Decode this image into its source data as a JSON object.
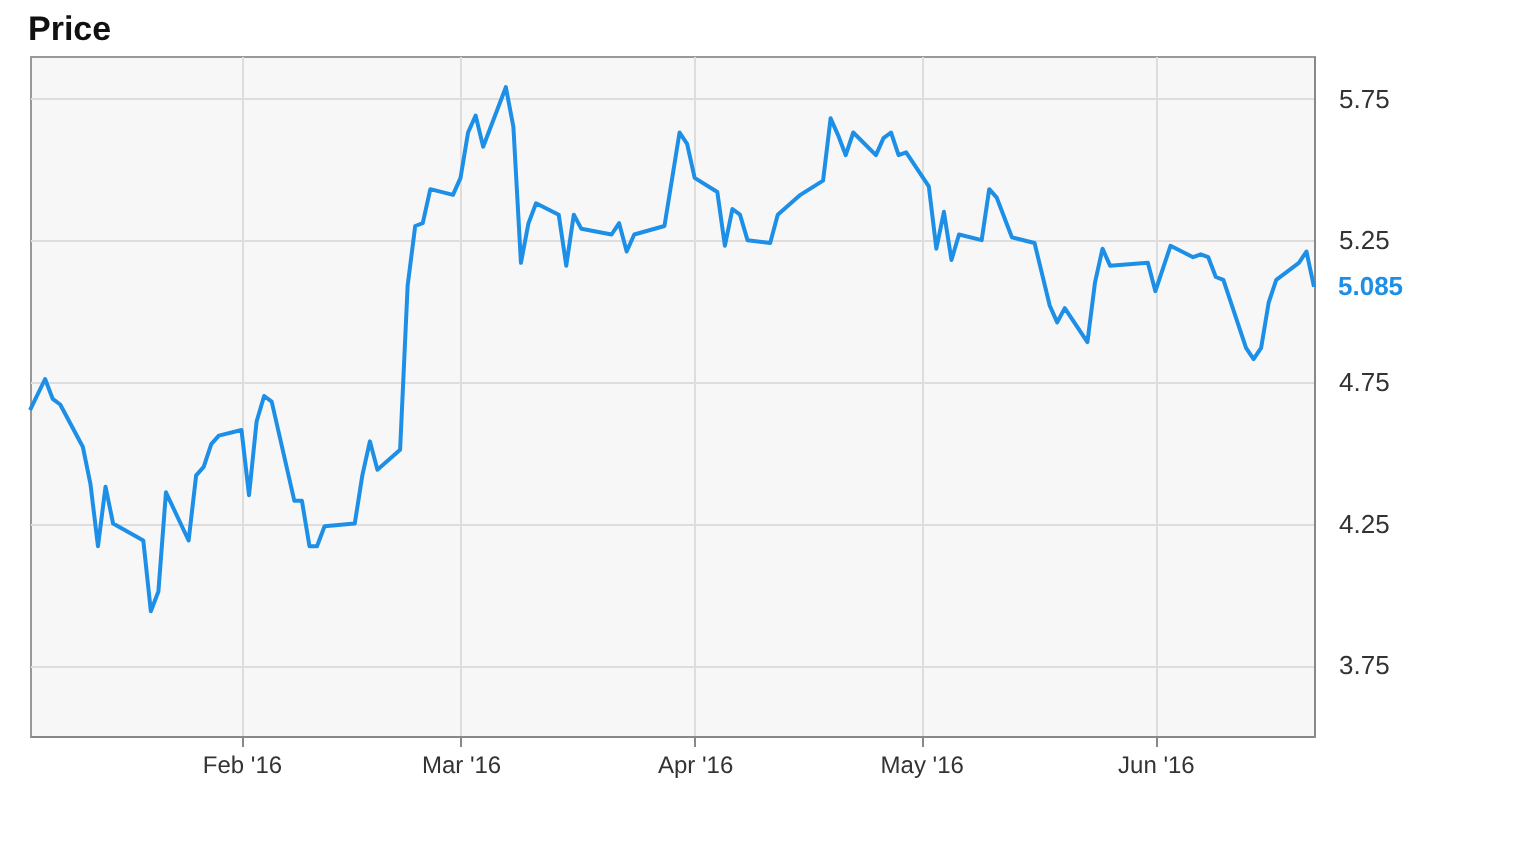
{
  "chart_data": {
    "type": "line",
    "title": "Price",
    "x": [
      "2016-01-04",
      "2016-01-06",
      "2016-01-07",
      "2016-01-08",
      "2016-01-11",
      "2016-01-12",
      "2016-01-13",
      "2016-01-14",
      "2016-01-15",
      "2016-01-19",
      "2016-01-20",
      "2016-01-21",
      "2016-01-22",
      "2016-01-25",
      "2016-01-26",
      "2016-01-27",
      "2016-01-28",
      "2016-01-29",
      "2016-02-01",
      "2016-02-02",
      "2016-02-03",
      "2016-02-04",
      "2016-02-05",
      "2016-02-08",
      "2016-02-09",
      "2016-02-10",
      "2016-02-11",
      "2016-02-12",
      "2016-02-16",
      "2016-02-17",
      "2016-02-18",
      "2016-02-19",
      "2016-02-22",
      "2016-02-23",
      "2016-02-24",
      "2016-02-25",
      "2016-02-26",
      "2016-02-29",
      "2016-03-01",
      "2016-03-02",
      "2016-03-03",
      "2016-03-04",
      "2016-03-07",
      "2016-03-08",
      "2016-03-09",
      "2016-03-10",
      "2016-03-11",
      "2016-03-14",
      "2016-03-15",
      "2016-03-16",
      "2016-03-17",
      "2016-03-21",
      "2016-03-22",
      "2016-03-23",
      "2016-03-24",
      "2016-03-28",
      "2016-03-30",
      "2016-03-31",
      "2016-04-01",
      "2016-04-04",
      "2016-04-05",
      "2016-04-06",
      "2016-04-07",
      "2016-04-08",
      "2016-04-11",
      "2016-04-12",
      "2016-04-15",
      "2016-04-18",
      "2016-04-19",
      "2016-04-20",
      "2016-04-21",
      "2016-04-22",
      "2016-04-25",
      "2016-04-26",
      "2016-04-27",
      "2016-04-28",
      "2016-04-29",
      "2016-05-02",
      "2016-05-03",
      "2016-05-04",
      "2016-05-05",
      "2016-05-06",
      "2016-05-09",
      "2016-05-10",
      "2016-05-11",
      "2016-05-13",
      "2016-05-16",
      "2016-05-18",
      "2016-05-19",
      "2016-05-20",
      "2016-05-23",
      "2016-05-24",
      "2016-05-25",
      "2016-05-26",
      "2016-05-31",
      "2016-06-01",
      "2016-06-03",
      "2016-06-06",
      "2016-06-07",
      "2016-06-08",
      "2016-06-09",
      "2016-06-10",
      "2016-06-13",
      "2016-06-14",
      "2016-06-15",
      "2016-06-16",
      "2016-06-17",
      "2016-06-20",
      "2016-06-21",
      "2016-06-22"
    ],
    "series": [
      {
        "color": "#1e8fe6",
        "values": [
          4.65,
          4.76,
          4.69,
          4.67,
          4.52,
          4.39,
          4.17,
          4.38,
          4.25,
          4.19,
          3.94,
          4.01,
          4.36,
          4.19,
          4.42,
          4.45,
          4.53,
          4.56,
          4.58,
          4.35,
          4.61,
          4.7,
          4.68,
          4.33,
          4.33,
          4.17,
          4.17,
          4.24,
          4.25,
          4.42,
          4.54,
          4.44,
          4.51,
          5.09,
          5.3,
          5.31,
          5.43,
          5.41,
          5.47,
          5.63,
          5.69,
          5.58,
          5.79,
          5.65,
          5.17,
          5.31,
          5.38,
          5.34,
          5.16,
          5.34,
          5.29,
          5.27,
          5.31,
          5.21,
          5.27,
          5.3,
          5.63,
          5.59,
          5.47,
          5.42,
          5.23,
          5.36,
          5.34,
          5.25,
          5.24,
          5.34,
          5.41,
          5.46,
          5.68,
          5.62,
          5.55,
          5.63,
          5.55,
          5.61,
          5.63,
          5.55,
          5.56,
          5.44,
          5.22,
          5.35,
          5.18,
          5.27,
          5.25,
          5.43,
          5.4,
          5.26,
          5.24,
          5.02,
          4.96,
          5.01,
          4.89,
          5.1,
          5.22,
          5.16,
          5.17,
          5.07,
          5.23,
          5.19,
          5.2,
          5.19,
          5.12,
          5.11,
          4.87,
          4.83,
          4.87,
          5.03,
          5.11,
          5.17,
          5.21,
          5.085
        ]
      }
    ],
    "xlim": [
      "2016-01-04",
      "2016-06-22"
    ],
    "xticks": [
      {
        "value": "2016-02-01",
        "label": "Feb '16"
      },
      {
        "value": "2016-03-01",
        "label": "Mar '16"
      },
      {
        "value": "2016-04-01",
        "label": "Apr '16"
      },
      {
        "value": "2016-05-01",
        "label": "May '16"
      },
      {
        "value": "2016-06-01",
        "label": "Jun '16"
      }
    ],
    "ylim": [
      3.5,
      5.9
    ],
    "yticks": [
      3.75,
      4.25,
      4.75,
      5.25,
      5.75
    ],
    "annotations": [
      {
        "text": "5.085",
        "x": "2016-06-22",
        "y": 5.085
      }
    ],
    "grid": true,
    "marker": "none",
    "line_style": "solid"
  }
}
